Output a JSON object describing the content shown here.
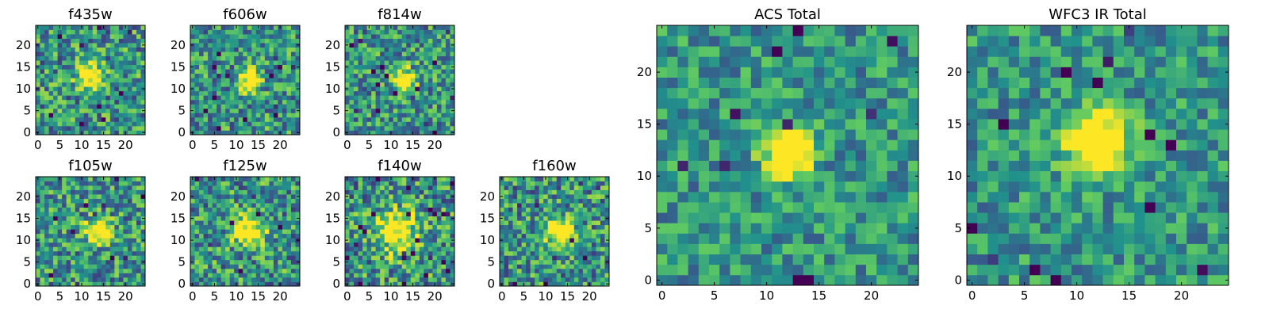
{
  "chart_data": [
    {
      "type": "heatmap",
      "title": "f435w",
      "size": 25,
      "seed": 11,
      "noise": 0.34,
      "peak": 0.75,
      "center": [
        12,
        13
      ],
      "sigma": 2.0,
      "xticks": [
        0,
        5,
        10,
        15,
        20
      ],
      "yticks": [
        0,
        5,
        10,
        15,
        20
      ],
      "xlim": [
        0,
        24
      ],
      "ylim": [
        0,
        24
      ]
    },
    {
      "type": "heatmap",
      "title": "f606w",
      "size": 25,
      "seed": 23,
      "noise": 0.32,
      "peak": 0.95,
      "center": [
        13,
        12
      ],
      "sigma": 1.6,
      "xticks": [
        0,
        5,
        10,
        15,
        20
      ],
      "yticks": [
        0,
        5,
        10,
        15,
        20
      ],
      "xlim": [
        0,
        24
      ],
      "ylim": [
        0,
        24
      ]
    },
    {
      "type": "heatmap",
      "title": "f814w",
      "size": 25,
      "seed": 37,
      "noise": 0.32,
      "peak": 0.85,
      "center": [
        13,
        12
      ],
      "sigma": 1.7,
      "xticks": [
        0,
        5,
        10,
        15,
        20
      ],
      "yticks": [
        0,
        5,
        10,
        15,
        20
      ],
      "xlim": [
        0,
        24
      ],
      "ylim": [
        0,
        24
      ]
    },
    {
      "type": "heatmap",
      "title": "f105w",
      "size": 25,
      "seed": 41,
      "noise": 0.33,
      "peak": 0.75,
      "center": [
        14,
        12
      ],
      "sigma": 2.0,
      "xticks": [
        0,
        5,
        10,
        15,
        20
      ],
      "yticks": [
        0,
        5,
        10,
        15,
        20
      ],
      "xlim": [
        0,
        24
      ],
      "ylim": [
        0,
        24
      ]
    },
    {
      "type": "heatmap",
      "title": "f125w",
      "size": 25,
      "seed": 53,
      "noise": 0.34,
      "peak": 0.75,
      "center": [
        13,
        12
      ],
      "sigma": 2.4,
      "xticks": [
        0,
        5,
        10,
        15,
        20
      ],
      "yticks": [
        0,
        5,
        10,
        15,
        20
      ],
      "xlim": [
        0,
        24
      ],
      "ylim": [
        0,
        24
      ]
    },
    {
      "type": "heatmap",
      "title": "f140w",
      "size": 25,
      "seed": 67,
      "noise": 0.35,
      "peak": 0.7,
      "center": [
        11,
        12
      ],
      "sigma": 3.2,
      "xticks": [
        0,
        5,
        10,
        15,
        20
      ],
      "yticks": [
        0,
        5,
        10,
        15,
        20
      ],
      "xlim": [
        0,
        24
      ],
      "ylim": [
        0,
        24
      ]
    },
    {
      "type": "heatmap",
      "title": "f160w",
      "size": 25,
      "seed": 79,
      "noise": 0.34,
      "peak": 0.75,
      "center": [
        13,
        12
      ],
      "sigma": 2.2,
      "xticks": [
        0,
        5,
        10,
        15,
        20
      ],
      "yticks": [
        0,
        5,
        10,
        15,
        20
      ],
      "xlim": [
        0,
        24
      ],
      "ylim": [
        0,
        24
      ]
    },
    {
      "type": "heatmap",
      "title": "ACS Total",
      "size": 25,
      "seed": 97,
      "noise": 0.24,
      "peak": 1.0,
      "center": [
        12,
        12
      ],
      "sigma": 1.5,
      "xticks": [
        0,
        5,
        10,
        15,
        20
      ],
      "yticks": [
        0,
        5,
        10,
        15,
        20
      ],
      "xlim": [
        0,
        24
      ],
      "ylim": [
        0,
        24
      ]
    },
    {
      "type": "heatmap",
      "title": "WFC3 IR Total",
      "size": 25,
      "seed": 113,
      "noise": 0.24,
      "peak": 0.95,
      "center": [
        12,
        13
      ],
      "sigma": 2.0,
      "xticks": [
        0,
        5,
        10,
        15,
        20
      ],
      "yticks": [
        0,
        5,
        10,
        15,
        20
      ],
      "xlim": [
        0,
        24
      ],
      "ylim": [
        0,
        24
      ]
    }
  ],
  "colormap": [
    "#440154",
    "#3b528b",
    "#21918c",
    "#5ec962",
    "#fde725"
  ]
}
